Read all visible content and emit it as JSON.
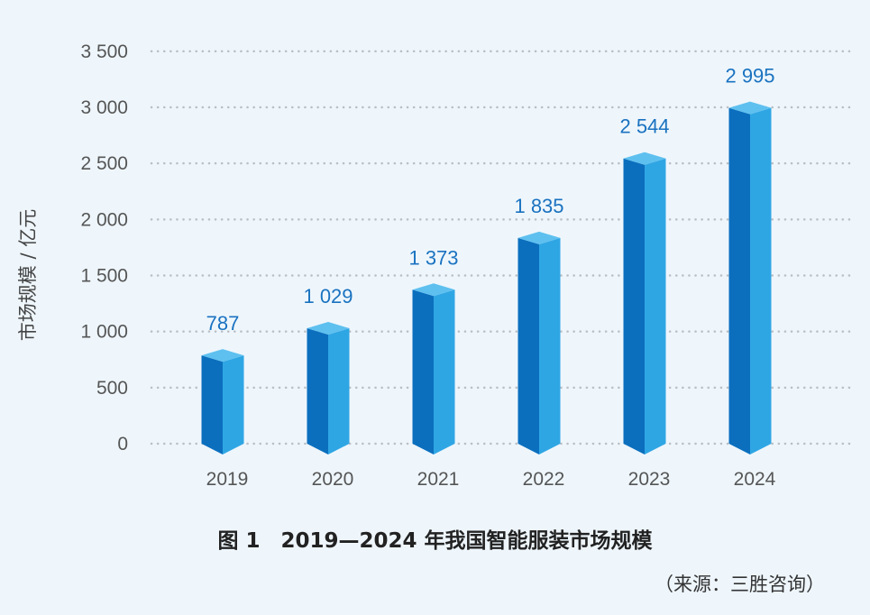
{
  "chart_data": {
    "type": "bar",
    "title": "图 1　2019—2024 年我国智能服装市场规模",
    "ylabel": "市场规模 / 亿元",
    "xlabel": "",
    "categories": [
      "2019",
      "2020",
      "2021",
      "2022",
      "2023",
      "2024"
    ],
    "values": [
      787,
      1029,
      1373,
      1835,
      2544,
      2995
    ],
    "value_labels": [
      "787",
      "1 029",
      "1 373",
      "1 835",
      "2 544",
      "2 995"
    ],
    "ylim": [
      0,
      3500
    ],
    "yticks": [
      0,
      500,
      1000,
      1500,
      2000,
      2500,
      3000,
      3500
    ],
    "ytick_labels": [
      "0",
      "500",
      "1 000",
      "1 500",
      "2 000",
      "2 500",
      "3 000",
      "3 500"
    ],
    "grid": "dotted horizontal",
    "source": "（来源：三胜咨询）",
    "colors": {
      "front_left": "#0b6fbe",
      "front_right": "#2fa6e4",
      "top": "#5ec0ef",
      "label": "#1a72c0",
      "background": "#eef6fc"
    }
  }
}
